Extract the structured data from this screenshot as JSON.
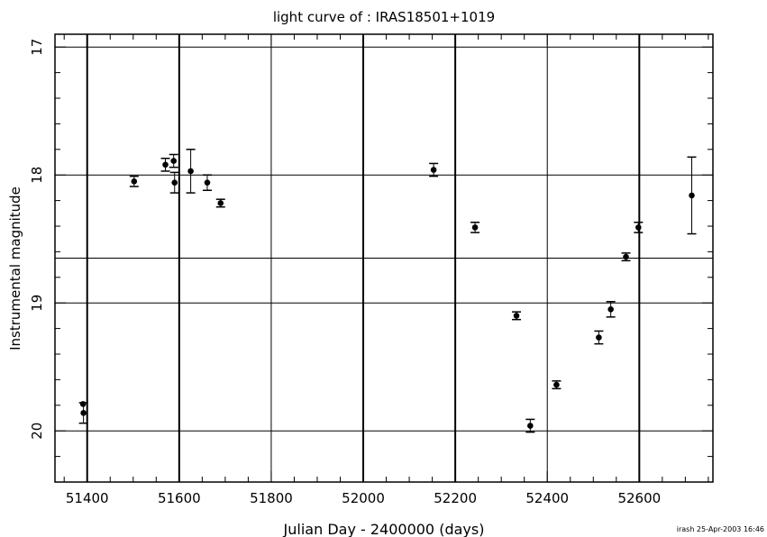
{
  "chart_data": {
    "type": "scatter",
    "title": "light curve of : IRAS18501+1019",
    "xlabel": "Julian Day - 2400000 (days)",
    "ylabel": "Instrumental magnitude",
    "footer": "irash 25-Apr-2003 16:46",
    "xlim": [
      51330,
      52760
    ],
    "ylim": [
      20.4,
      16.9
    ],
    "y_inverted": true,
    "x_ticks": [
      51400,
      51600,
      51800,
      52000,
      52200,
      52400,
      52600
    ],
    "x_tick_labels": [
      "51400",
      "51600",
      "51800",
      "52000",
      "52200",
      "52400",
      "52600"
    ],
    "y_ticks": [
      17,
      18,
      19,
      20
    ],
    "y_tick_labels": [
      "17",
      "18",
      "19",
      "20"
    ],
    "vertical_lines": [
      51400,
      51600,
      51800,
      52000,
      52200,
      52400,
      52600
    ],
    "horizontal_lines": [
      17,
      18,
      18.65,
      19,
      20
    ],
    "thick_vertical_lines": [
      51400,
      51600,
      52000,
      52200,
      52600
    ],
    "points": [
      {
        "x": 51391,
        "y": 19.79,
        "err": 0
      },
      {
        "x": 51392,
        "y": 19.86,
        "err": 0.08
      },
      {
        "x": 51502,
        "y": 18.05,
        "err": 0.04
      },
      {
        "x": 51570,
        "y": 17.92,
        "err": 0.05
      },
      {
        "x": 51588,
        "y": 17.89,
        "err": 0.05
      },
      {
        "x": 51590,
        "y": 18.06,
        "err": 0.08
      },
      {
        "x": 51625,
        "y": 17.97,
        "err": 0.17
      },
      {
        "x": 51661,
        "y": 18.06,
        "err": 0.06
      },
      {
        "x": 51690,
        "y": 18.22,
        "err": 0.03
      },
      {
        "x": 52153,
        "y": 17.96,
        "err": 0.05
      },
      {
        "x": 52243,
        "y": 18.41,
        "err": 0.04
      },
      {
        "x": 52333,
        "y": 19.1,
        "err": 0.03
      },
      {
        "x": 52363,
        "y": 19.96,
        "err": 0.05
      },
      {
        "x": 52420,
        "y": 19.64,
        "err": 0.03
      },
      {
        "x": 52512,
        "y": 19.27,
        "err": 0.05
      },
      {
        "x": 52538,
        "y": 19.05,
        "err": 0.06
      },
      {
        "x": 52571,
        "y": 18.64,
        "err": 0.03
      },
      {
        "x": 52598,
        "y": 18.41,
        "err": 0.04
      },
      {
        "x": 52714,
        "y": 18.16,
        "err": 0.3
      }
    ]
  }
}
